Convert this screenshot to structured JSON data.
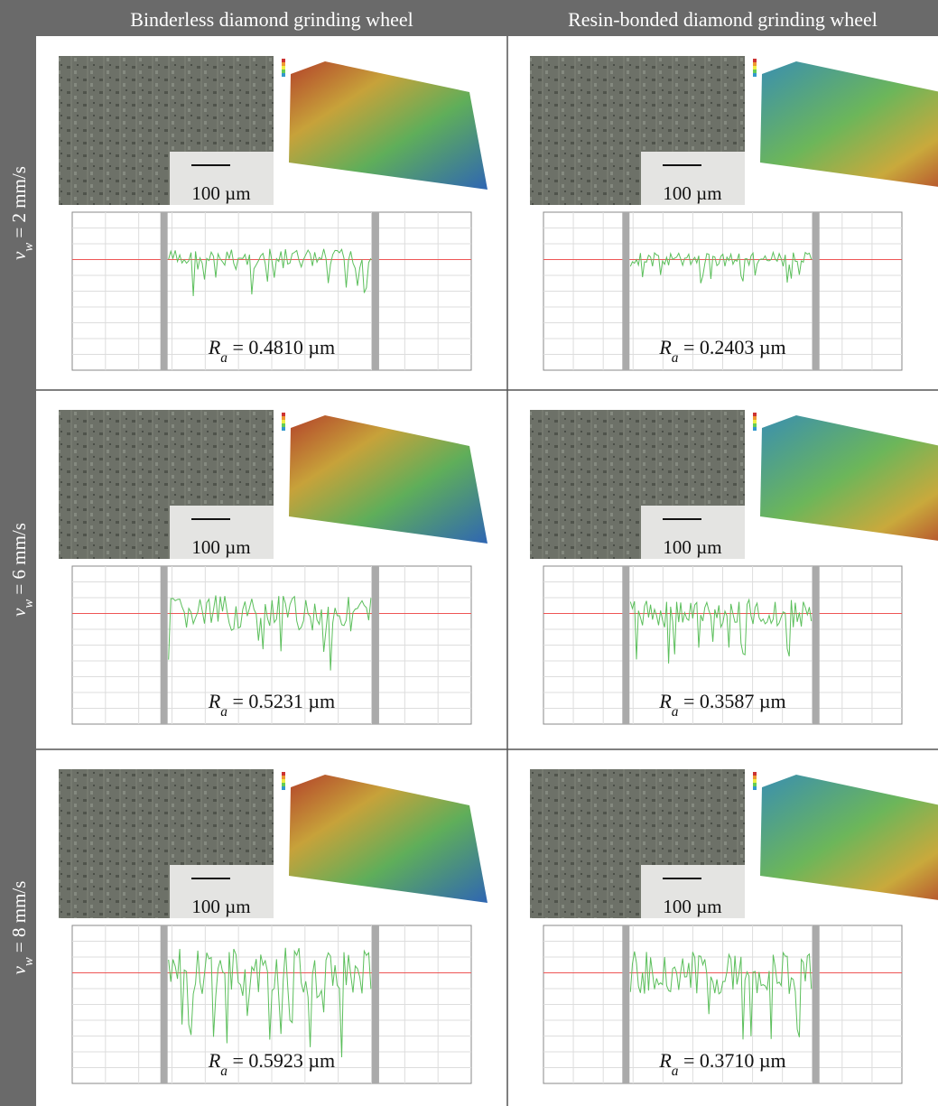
{
  "header": {
    "columns": [
      "Binderless diamond grinding wheel",
      "Resin-bonded diamond grinding wheel"
    ]
  },
  "rows": [
    {
      "label": {
        "symbol": "v",
        "subscript": "w",
        "text": " = 2 mm/s"
      },
      "cells": [
        {
          "scale_bar": "100 µm",
          "roughness": {
            "symbol": "R",
            "subscript": "a",
            "text": " = 0.4810 µm"
          }
        },
        {
          "scale_bar": "100 µm",
          "roughness": {
            "symbol": "R",
            "subscript": "a",
            "text": " = 0.2403 µm"
          }
        }
      ]
    },
    {
      "label": {
        "symbol": "v",
        "subscript": "w",
        "text": " = 6 mm/s"
      },
      "cells": [
        {
          "scale_bar": "100 µm",
          "roughness": {
            "symbol": "R",
            "subscript": "a",
            "text": " = 0.5231 µm"
          }
        },
        {
          "scale_bar": "100 µm",
          "roughness": {
            "symbol": "R",
            "subscript": "a",
            "text": " = 0.3587 µm"
          }
        }
      ]
    },
    {
      "label": {
        "symbol": "v",
        "subscript": "w",
        "text": " = 8 mm/s"
      },
      "cells": [
        {
          "scale_bar": "100 µm",
          "roughness": {
            "symbol": "R",
            "subscript": "a",
            "text": " = 0.5923 µm"
          }
        },
        {
          "scale_bar": "100 µm",
          "roughness": {
            "symbol": "R",
            "subscript": "a",
            "text": " = 0.3710 µm"
          }
        }
      ]
    }
  ]
}
